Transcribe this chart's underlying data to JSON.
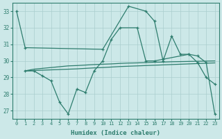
{
  "xlabel": "Humidex (Indice chaleur)",
  "series": {
    "s1_x": [
      0,
      1,
      10,
      13,
      15,
      16,
      17,
      18,
      19,
      20,
      21,
      22,
      23
    ],
    "s1_y": [
      33.0,
      30.8,
      30.7,
      33.3,
      33.0,
      32.4,
      30.0,
      31.5,
      30.4,
      30.4,
      29.9,
      29.0,
      28.6
    ],
    "s2_x": [
      1,
      2,
      3,
      4,
      5,
      6,
      7,
      8,
      9,
      10,
      11,
      12,
      14,
      15,
      16,
      17,
      20,
      21,
      22,
      23
    ],
    "s2_y": [
      29.4,
      29.4,
      29.1,
      28.8,
      27.5,
      26.8,
      28.3,
      28.1,
      29.4,
      30.0,
      31.3,
      32.0,
      32.0,
      30.0,
      30.0,
      30.1,
      30.4,
      30.3,
      29.9,
      26.8
    ],
    "s3_x": [
      1,
      2,
      3,
      4,
      5,
      6,
      7,
      8,
      9,
      10,
      11,
      12,
      13,
      14,
      15,
      16,
      17,
      18,
      19,
      20,
      21,
      22,
      23
    ],
    "s3_y": [
      29.4,
      29.5,
      29.55,
      29.6,
      29.65,
      29.7,
      29.72,
      29.75,
      29.78,
      29.8,
      29.82,
      29.85,
      29.87,
      29.88,
      29.9,
      29.92,
      29.93,
      29.95,
      29.96,
      29.97,
      29.98,
      29.99,
      30.0
    ],
    "s4_x": [
      1,
      2,
      3,
      4,
      5,
      6,
      7,
      8,
      9,
      10,
      11,
      12,
      13,
      14,
      15,
      16,
      17,
      18,
      19,
      20,
      21,
      22,
      23
    ],
    "s4_y": [
      29.4,
      29.42,
      29.44,
      29.46,
      29.48,
      29.5,
      29.52,
      29.55,
      29.58,
      29.6,
      29.63,
      29.66,
      29.68,
      29.7,
      29.72,
      29.74,
      29.76,
      29.78,
      29.8,
      29.82,
      29.84,
      29.86,
      29.88
    ]
  },
  "ylim": [
    26.5,
    33.5
  ],
  "yticks": [
    27,
    28,
    29,
    30,
    31,
    32,
    33
  ],
  "xticks": [
    0,
    1,
    2,
    3,
    4,
    5,
    6,
    7,
    8,
    9,
    10,
    11,
    12,
    13,
    14,
    15,
    16,
    17,
    18,
    19,
    20,
    21,
    22,
    23
  ],
  "line_color": "#2e7d6e",
  "bg_color": "#cce8e8",
  "grid_color": "#aacece",
  "axes_bg": "#cce8e8"
}
